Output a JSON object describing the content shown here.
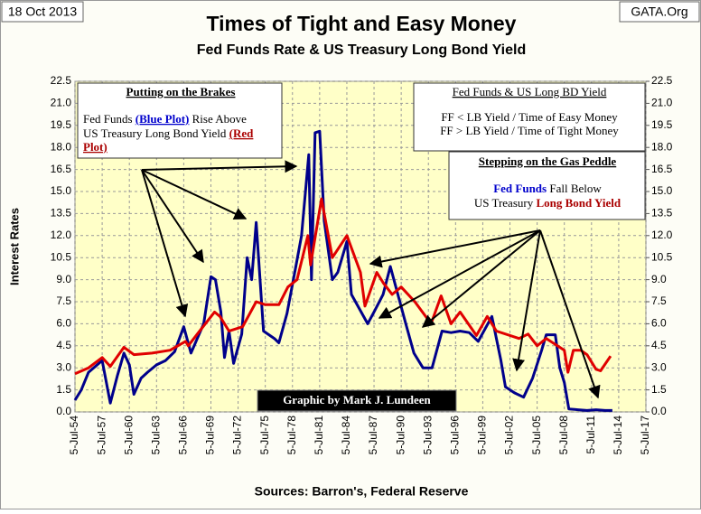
{
  "chart_data": {
    "type": "line",
    "title": "Times of Tight and Easy Money",
    "subtitle": "Fed Funds Rate & US Treasury Long Bond Yield",
    "date": "18 Oct 2013",
    "site": "GATA.Org",
    "ylabel": "Interest Rates",
    "source": "Sources: Barron's, Federal Reserve",
    "credit": "Graphic by Mark J. Lundeen",
    "brakes": {
      "title": "Putting on the Brakes",
      "a": "Fed Funds ",
      "b": "(Blue Plot)",
      "c": " Rise Above",
      "d": "US Treasury Long Bond Yield ",
      "e": "(Red",
      "f": "Plot)"
    },
    "key": {
      "title": "Fed Funds & US Long BD Yield",
      "easy": "FF < LB Yield / Time of Easy Money",
      "tight": "FF > LB Yield / Time of Tight Money"
    },
    "gas": {
      "title": "Stepping on the Gas Peddle",
      "a": " Fall Below",
      "b": "US Treasury "
    },
    "xlim": [
      1954.5,
      2017.5
    ],
    "xticks": [
      {
        "value": 1954.5,
        "label": "5-Jul-54"
      },
      {
        "value": 1957.5,
        "label": "5-Jul-57"
      },
      {
        "value": 1960.5,
        "label": "5-Jul-60"
      },
      {
        "value": 1963.5,
        "label": "5-Jul-63"
      },
      {
        "value": 1966.5,
        "label": "5-Jul-66"
      },
      {
        "value": 1969.5,
        "label": "5-Jul-69"
      },
      {
        "value": 1972.5,
        "label": "5-Jul-72"
      },
      {
        "value": 1975.5,
        "label": "5-Jul-75"
      },
      {
        "value": 1978.5,
        "label": "5-Jul-78"
      },
      {
        "value": 1981.5,
        "label": "5-Jul-81"
      },
      {
        "value": 1984.5,
        "label": "5-Jul-84"
      },
      {
        "value": 1987.5,
        "label": "5-Jul-87"
      },
      {
        "value": 1990.5,
        "label": "5-Jul-90"
      },
      {
        "value": 1993.5,
        "label": "5-Jul-93"
      },
      {
        "value": 1996.5,
        "label": "5-Jul-96"
      },
      {
        "value": 1999.5,
        "label": "5-Jul-99"
      },
      {
        "value": 2002.5,
        "label": "5-Jul-02"
      },
      {
        "value": 2005.5,
        "label": "5-Jul-05"
      },
      {
        "value": 2008.5,
        "label": "5-Jul-08"
      },
      {
        "value": 2011.5,
        "label": "5-Jul-11"
      },
      {
        "value": 2014.5,
        "label": "5-Jul-14"
      },
      {
        "value": 2017.5,
        "label": "5-Jul-17"
      }
    ],
    "ylim": [
      0,
      22.5
    ],
    "yticks": [
      {
        "value": 0,
        "label": "0.0"
      },
      1.5,
      {
        "value": 3,
        "label": "3.0"
      },
      4.5,
      {
        "value": 6,
        "label": "6.0"
      },
      7.5,
      {
        "value": 9,
        "label": "9.0"
      },
      10.5,
      {
        "value": 12,
        "label": "12.0"
      },
      13.5,
      {
        "value": 15,
        "label": "15.0"
      },
      16.5,
      {
        "value": 18,
        "label": "18.0"
      },
      19.5,
      {
        "value": 21,
        "label": "21.0"
      },
      22.5
    ],
    "y2lim": [
      0,
      22.5
    ],
    "y2ticks": [
      {
        "value": 0,
        "label": "0.0"
      },
      1.5,
      {
        "value": 3,
        "label": "3.0"
      },
      4.5,
      {
        "value": 6,
        "label": "6.0"
      },
      7.5,
      {
        "value": 9,
        "label": "9.0"
      },
      10.5,
      {
        "value": 12,
        "label": "12.0"
      },
      13.5,
      {
        "value": 15,
        "label": "15.0"
      },
      16.5,
      {
        "value": 18,
        "label": "18.0"
      },
      19.5,
      {
        "value": 21,
        "label": "21.0"
      },
      22.5
    ],
    "grid": true,
    "series": [
      {
        "name": "Fed Funds",
        "color": "#00008b",
        "x": [
          1954.5,
          1955.2,
          1956,
          1957.5,
          1958.4,
          1959.2,
          1959.9,
          1960.5,
          1961,
          1961.8,
          1962.5,
          1963.5,
          1964.5,
          1965.5,
          1966.5,
          1967.3,
          1968,
          1968.7,
          1969.5,
          1970,
          1970.6,
          1971,
          1971.5,
          1972,
          1972.9,
          1973.5,
          1974,
          1974.5,
          1975.3,
          1976.5,
          1977,
          1977.9,
          1978.9,
          1979.5,
          1980.3,
          1980.6,
          1981,
          1981.5,
          1982,
          1982.9,
          1983.5,
          1984.5,
          1985,
          1986.8,
          1987.5,
          1988.5,
          1989.3,
          1990,
          1991,
          1991.9,
          1992.9,
          1993.9,
          1995,
          1996,
          1997,
          1998,
          1999,
          2000.5,
          2001.5,
          2002,
          2003,
          2004,
          2005,
          2006,
          2006.5,
          2007.5,
          2008,
          2008.5,
          2009,
          2010,
          2011,
          2012,
          2013,
          2013.8
        ],
        "values": [
          0.8,
          1.5,
          2.7,
          3.5,
          0.6,
          2.5,
          4.0,
          3.2,
          1.2,
          2.3,
          2.7,
          3.2,
          3.5,
          4.1,
          5.8,
          4.0,
          5.0,
          6.0,
          9.2,
          9.0,
          6.8,
          3.7,
          5.5,
          3.3,
          5.3,
          10.5,
          9.0,
          12.9,
          5.5,
          5.0,
          4.7,
          6.7,
          10.0,
          12.0,
          17.5,
          9.0,
          19.0,
          19.1,
          13.0,
          9.0,
          9.5,
          11.6,
          8.0,
          6.0,
          6.8,
          8.0,
          9.9,
          8.3,
          6.0,
          4.0,
          3.0,
          3.0,
          5.5,
          5.4,
          5.5,
          5.4,
          4.8,
          6.5,
          3.5,
          1.7,
          1.3,
          1.0,
          2.3,
          4.2,
          5.25,
          5.25,
          3.0,
          2.0,
          0.2,
          0.15,
          0.1,
          0.15,
          0.1,
          0.1
        ]
      },
      {
        "name": "Long Bond Yield",
        "color": "#e00000",
        "x": [
          1954.5,
          1956,
          1957.5,
          1958.4,
          1959.9,
          1961,
          1963,
          1965,
          1966.7,
          1967,
          1968,
          1969.9,
          1970.5,
          1971.5,
          1973,
          1974.5,
          1975.5,
          1977,
          1978,
          1979,
          1980.2,
          1980.5,
          1981.7,
          1982.9,
          1984.5,
          1986,
          1986.5,
          1987.8,
          1988.5,
          1989.5,
          1990.5,
          1992,
          1993.8,
          1994.9,
          1996,
          1997,
          1998.8,
          2000,
          2001,
          2003.5,
          2004.5,
          2005.5,
          2006.5,
          2007.5,
          2008.5,
          2008.9,
          2009.5,
          2010.3,
          2011,
          2012,
          2012.5,
          2013.6
        ],
        "values": [
          2.6,
          3.0,
          3.7,
          3.1,
          4.4,
          3.9,
          4.0,
          4.2,
          4.8,
          4.5,
          5.3,
          6.8,
          6.5,
          5.5,
          5.8,
          7.5,
          7.3,
          7.3,
          8.5,
          9.0,
          12.0,
          10.0,
          14.5,
          10.5,
          12.0,
          9.5,
          7.2,
          9.5,
          8.8,
          8.0,
          8.5,
          7.5,
          6.0,
          7.9,
          6.0,
          6.8,
          5.2,
          6.5,
          5.5,
          5.0,
          5.3,
          4.5,
          5.0,
          4.6,
          4.2,
          2.7,
          4.2,
          4.2,
          3.9,
          2.9,
          2.8,
          3.8
        ]
      }
    ]
  }
}
